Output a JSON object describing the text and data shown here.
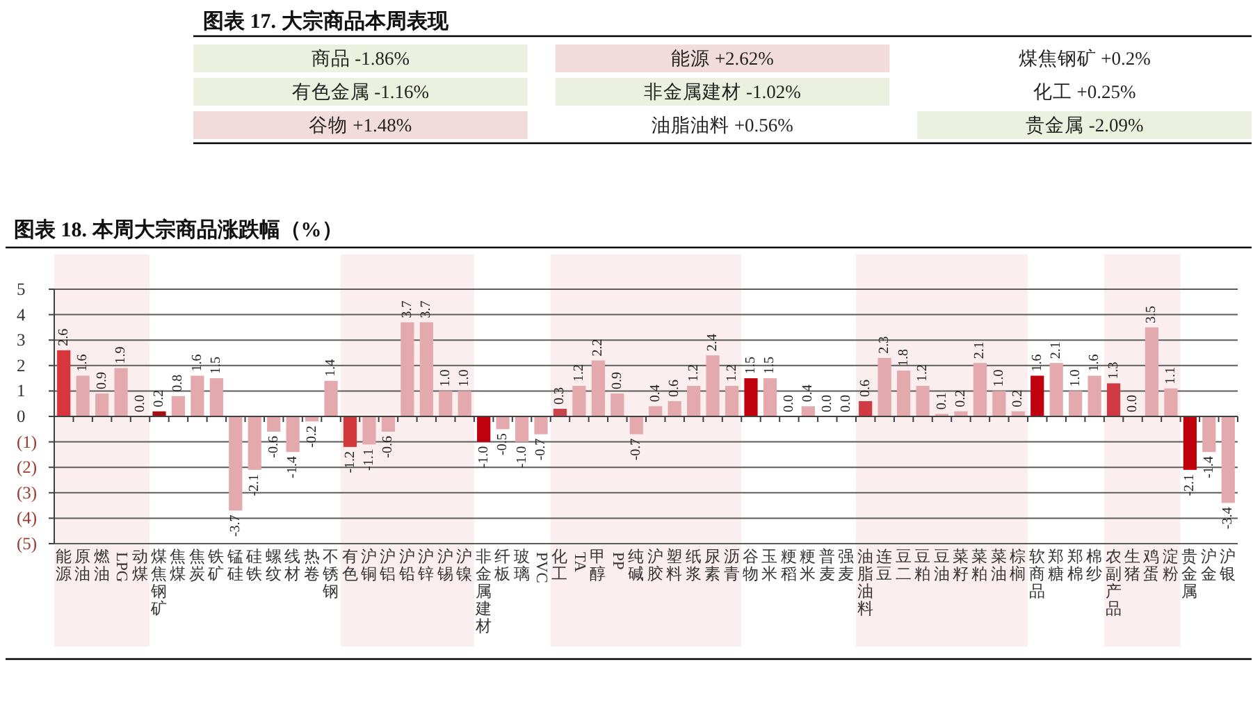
{
  "chart_data": [
    {
      "type": "other",
      "title": "图表 17. 大宗商品本周表现",
      "annotations": [
        "商品 -1.86%",
        "能源 +2.62%",
        "煤焦钢矿 +0.2%",
        "有色金属 -1.16%",
        "非金属建材 -1.02%",
        "化工 +0.25%",
        "谷物 +1.48%",
        "油脂油料 +0.56%",
        "贵金属 -2.09%"
      ],
      "colors": [
        "#ebf1de",
        "#f2dcdb",
        null,
        "#ebf1de",
        "#ebf1de",
        null,
        "#f2dcdb",
        null,
        "#ebf1de"
      ]
    },
    {
      "type": "bar",
      "title": "图表 18. 本周大宗商品涨跌幅（%）",
      "categories": [
        "能源",
        "原油",
        "燃油",
        "LPG",
        "动煤",
        "煤焦钢矿",
        "焦煤",
        "焦炭",
        "铁矿",
        "锰硅",
        "硅铁",
        "螺纹",
        "线材",
        "热卷",
        "不锈钢",
        "有色",
        "沪铜",
        "沪铝",
        "沪铅",
        "沪锌",
        "沪锡",
        "沪镍",
        "非金属建材",
        "纤板",
        "玻璃",
        "PVC",
        "化工",
        "TA",
        "甲醇",
        "PP",
        "纯碱",
        "沪胶",
        "塑料",
        "纸浆",
        "尿素",
        "沥青",
        "谷物",
        "玉米",
        "粳稻",
        "粳米",
        "普麦",
        "强麦",
        "油脂油料",
        "连豆",
        "豆二",
        "豆粕",
        "豆油",
        "菜籽",
        "菜粕",
        "菜油",
        "棕榈",
        "软商品",
        "郑糖",
        "郑棉",
        "棉纱",
        "农副产品",
        "生猪",
        "鸡蛋",
        "淀粉",
        "贵金属",
        "沪金",
        "沪银"
      ],
      "values": [
        2.6,
        1.6,
        0.9,
        1.9,
        0,
        0.2,
        0.8,
        1.6,
        1.5,
        -3.7,
        -2.1,
        -0.6,
        -1.4,
        -0.2,
        1.4,
        -1.2,
        -1.1,
        -0.6,
        3.7,
        3.7,
        1,
        1,
        -1,
        -0.5,
        -1,
        -0.7,
        0.3,
        1.2,
        2.2,
        0.9,
        -0.7,
        0.4,
        0.6,
        1.2,
        2.4,
        1.2,
        1.5,
        1.5,
        0,
        0.4,
        0,
        0,
        0.6,
        2.3,
        1.8,
        1.2,
        0.1,
        0.2,
        2.1,
        1,
        0.2,
        1.6,
        2.1,
        1,
        1.6,
        1.3,
        0,
        3.5,
        1.1,
        -2.1,
        -1.4,
        -3.4
      ],
      "value_labels": [
        "2.6",
        "1.6",
        "0.9",
        "1.9",
        "0.0",
        "0.2",
        "0.8",
        "1.6",
        "1.5",
        "-3.7",
        "-2.1",
        "-0.6",
        "-1.4",
        "-0.2",
        "1.4",
        "-1.2",
        "-1.1",
        "-0.6",
        "3.7",
        "3.7",
        "1.0",
        "1.0",
        "-1.0",
        "-0.5",
        "-1.0",
        "-0.7",
        "0.3",
        "1.2",
        "2.2",
        "0.9",
        "-0.7",
        "0.4",
        "0.6",
        "1.2",
        "2.4",
        "1.2",
        "1.5",
        "1.5",
        "0.0",
        "0.4",
        "0.0",
        "0.0",
        "0.6",
        "2.3",
        "1.8",
        "1.2",
        "0.1",
        "0.2",
        "2.1",
        "1.0",
        "0.2",
        "1.6",
        "2.1",
        "1.0",
        "1.6",
        "1.3",
        "0.0",
        "3.5",
        "1.1",
        "-2.1",
        "-1.4",
        "-3.4"
      ],
      "colors": [
        "#d6363c",
        "#e4a9ac",
        "#e4a9ac",
        "#e4a9ac",
        "#e4a9ac",
        "#a50f14",
        "#e4a9ac",
        "#e4a9ac",
        "#e4a9ac",
        "#e4a9ac",
        "#e4a9ac",
        "#e4a9ac",
        "#e4a9ac",
        "#e4a9ac",
        "#e4a9ac",
        "#d2373c",
        "#e4a9ac",
        "#e4a9ac",
        "#e4a9ac",
        "#e4a9ac",
        "#e4a9ac",
        "#e4a9ac",
        "#c0000c",
        "#e4a9ac",
        "#e4a9ac",
        "#e4a9ac",
        "#c9434a",
        "#e4a9ac",
        "#e4a9ac",
        "#e4a9ac",
        "#e4a9ac",
        "#e4a9ac",
        "#e4a9ac",
        "#e4a9ac",
        "#e4a9ac",
        "#e4a9ac",
        "#c0000c",
        "#e4a9ac",
        "#e4a9ac",
        "#e4a9ac",
        "#e4a9ac",
        "#e4a9ac",
        "#d03a42",
        "#e4a9ac",
        "#e4a9ac",
        "#e4a9ac",
        "#e4a9ac",
        "#e4a9ac",
        "#e4a9ac",
        "#e4a9ac",
        "#e4a9ac",
        "#c0000c",
        "#e4a9ac",
        "#e4a9ac",
        "#e4a9ac",
        "#d03a42",
        "#e4a9ac",
        "#e4a9ac",
        "#e4a9ac",
        "#c0000c",
        "#e4a9ac",
        "#e4a9ac"
      ],
      "ylim": [
        -5,
        5
      ],
      "yticks": [
        {
          "value": -5,
          "label": "(5)"
        },
        {
          "value": -4,
          "label": "(4)"
        },
        {
          "value": -3,
          "label": "(3)"
        },
        {
          "value": -2,
          "label": "(2)"
        },
        {
          "value": -1,
          "label": "(1)"
        },
        0,
        1,
        2,
        3,
        4,
        5
      ],
      "grid": "y",
      "bands": [
        {
          "axis": "x",
          "from": "能源",
          "to": "动煤",
          "color": "#fbeeee"
        },
        {
          "axis": "x",
          "from": "有色",
          "to": "沪镍",
          "color": "#fbeeee"
        },
        {
          "axis": "x",
          "from": "化工",
          "to": "沥青",
          "color": "#fbeeee"
        },
        {
          "axis": "x",
          "from": "油脂油料",
          "to": "棕榈",
          "color": "#fbeeee"
        },
        {
          "axis": "x",
          "from": "农副产品",
          "to": "淀粉",
          "color": "#fbeeee"
        }
      ]
    }
  ]
}
